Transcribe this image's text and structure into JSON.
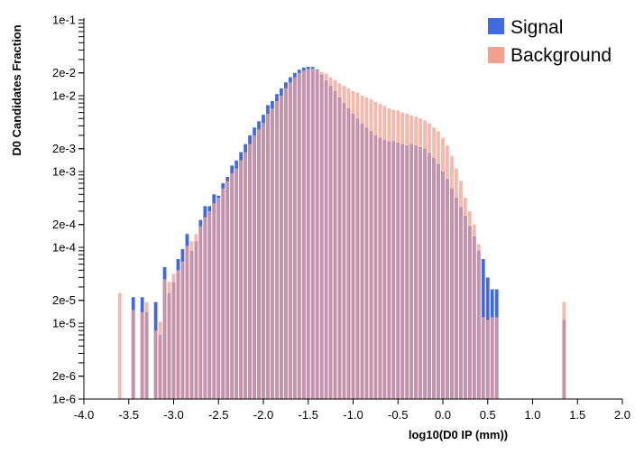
{
  "chart_data": {
    "type": "bar",
    "xlabel": "log10(D0 IP (mm))",
    "ylabel": "D0 Candidates Fraction",
    "y_scale": "log",
    "xlim": [
      -4.0,
      2.0
    ],
    "ylim": [
      1e-06,
      0.1
    ],
    "x_ticks": [
      "-4.0",
      "-3.5",
      "-3.0",
      "-2.5",
      "-2.0",
      "-1.5",
      "-1.0",
      "-0.5",
      "0.0",
      "0.5",
      "1.0",
      "1.5",
      "2.0"
    ],
    "y_ticks": [
      {
        "value": 1e-06,
        "label": "1e-6"
      },
      {
        "value": 2e-06,
        "label": "2e-6"
      },
      {
        "value": 1e-05,
        "label": "1e-5"
      },
      {
        "value": 2e-05,
        "label": "2e-5"
      },
      {
        "value": 0.0001,
        "label": "1e-4"
      },
      {
        "value": 0.0002,
        "label": "2e-4"
      },
      {
        "value": 0.001,
        "label": "1e-3"
      },
      {
        "value": 0.002,
        "label": "2e-3"
      },
      {
        "value": 0.01,
        "label": "1e-2"
      },
      {
        "value": 0.02,
        "label": "2e-2"
      },
      {
        "value": 0.1,
        "label": "1e-1"
      }
    ],
    "bin_width": 0.05,
    "legend_position": "top-right",
    "series": [
      {
        "name": "Signal",
        "color": "#4169e1",
        "points": [
          [
            -3.45,
            2.2e-05
          ],
          [
            -3.35,
            2.2e-05
          ],
          [
            -3.3,
            1.4e-05
          ],
          [
            -3.2,
            1.9e-05
          ],
          [
            -3.15,
            7e-06
          ],
          [
            -3.1,
            5.5e-05
          ],
          [
            -3.05,
            2.5e-05
          ],
          [
            -3.0,
            3.5e-05
          ],
          [
            -2.95,
            7e-05
          ],
          [
            -2.9,
            9.5e-05
          ],
          [
            -2.85,
            0.00015
          ],
          [
            -2.8,
            9e-05
          ],
          [
            -2.75,
            0.00012
          ],
          [
            -2.7,
            0.00023
          ],
          [
            -2.65,
            0.00035
          ],
          [
            -2.6,
            0.00035
          ],
          [
            -2.55,
            0.0005
          ],
          [
            -2.5,
            0.00048
          ],
          [
            -2.45,
            0.0007
          ],
          [
            -2.4,
            0.00085
          ],
          [
            -2.35,
            0.0012
          ],
          [
            -2.3,
            0.0014
          ],
          [
            -2.25,
            0.0018
          ],
          [
            -2.2,
            0.0023
          ],
          [
            -2.15,
            0.003
          ],
          [
            -2.1,
            0.0038
          ],
          [
            -2.05,
            0.0046
          ],
          [
            -2.0,
            0.0056
          ],
          [
            -1.95,
            0.0075
          ],
          [
            -1.9,
            0.0085
          ],
          [
            -1.85,
            0.0105
          ],
          [
            -1.8,
            0.0125
          ],
          [
            -1.75,
            0.015
          ],
          [
            -1.7,
            0.0175
          ],
          [
            -1.65,
            0.02
          ],
          [
            -1.6,
            0.022
          ],
          [
            -1.55,
            0.0235
          ],
          [
            -1.5,
            0.024
          ],
          [
            -1.45,
            0.024
          ],
          [
            -1.4,
            0.022
          ],
          [
            -1.35,
            0.019
          ],
          [
            -1.3,
            0.016
          ],
          [
            -1.25,
            0.0135
          ],
          [
            -1.2,
            0.0115
          ],
          [
            -1.15,
            0.0095
          ],
          [
            -1.1,
            0.008
          ],
          [
            -1.05,
            0.0068
          ],
          [
            -1.0,
            0.0058
          ],
          [
            -0.95,
            0.005
          ],
          [
            -0.9,
            0.0043
          ],
          [
            -0.85,
            0.0038
          ],
          [
            -0.8,
            0.0034
          ],
          [
            -0.75,
            0.003
          ],
          [
            -0.7,
            0.0028
          ],
          [
            -0.65,
            0.0026
          ],
          [
            -0.6,
            0.0025
          ],
          [
            -0.55,
            0.0025
          ],
          [
            -0.5,
            0.0024
          ],
          [
            -0.45,
            0.0023
          ],
          [
            -0.4,
            0.0022
          ],
          [
            -0.35,
            0.0023
          ],
          [
            -0.3,
            0.0022
          ],
          [
            -0.25,
            0.0021
          ],
          [
            -0.2,
            0.002
          ],
          [
            -0.15,
            0.00175
          ],
          [
            -0.1,
            0.0015
          ],
          [
            -0.05,
            0.00125
          ],
          [
            0.0,
            0.001
          ],
          [
            0.05,
            0.0008
          ],
          [
            0.1,
            0.0006
          ],
          [
            0.15,
            0.00045
          ],
          [
            0.2,
            0.00034
          ],
          [
            0.25,
            0.00026
          ],
          [
            0.3,
            0.00019
          ],
          [
            0.35,
            0.00014
          ],
          [
            0.4,
            9e-05
          ],
          [
            0.45,
            7e-05
          ],
          [
            0.5,
            4e-05
          ],
          [
            0.55,
            2.8e-05
          ],
          [
            0.6,
            2.8e-05
          ],
          [
            1.35,
            1.1e-05
          ]
        ]
      },
      {
        "name": "Background",
        "color": "#f4a090",
        "points": [
          [
            -3.6,
            2.5e-05
          ],
          [
            -3.45,
            1.5e-05
          ],
          [
            -3.35,
            1.4e-05
          ],
          [
            -3.3,
            1.9e-05
          ],
          [
            -3.2,
            8e-06
          ],
          [
            -3.15,
            1.05e-05
          ],
          [
            -3.1,
            3.8e-05
          ],
          [
            -3.05,
            3.5e-05
          ],
          [
            -3.0,
            4.5e-05
          ],
          [
            -2.95,
            5e-05
          ],
          [
            -2.9,
            6.5e-05
          ],
          [
            -2.85,
            0.000105
          ],
          [
            -2.8,
            0.00012
          ],
          [
            -2.75,
            0.00015
          ],
          [
            -2.7,
            0.00019
          ],
          [
            -2.65,
            0.00025
          ],
          [
            -2.6,
            0.0003
          ],
          [
            -2.55,
            0.00038
          ],
          [
            -2.5,
            0.00045
          ],
          [
            -2.45,
            0.0006
          ],
          [
            -2.4,
            0.00075
          ],
          [
            -2.35,
            0.00095
          ],
          [
            -2.3,
            0.0011
          ],
          [
            -2.25,
            0.0014
          ],
          [
            -2.2,
            0.0018
          ],
          [
            -2.15,
            0.0023
          ],
          [
            -2.1,
            0.003
          ],
          [
            -2.05,
            0.0036
          ],
          [
            -2.0,
            0.0044
          ],
          [
            -1.95,
            0.0058
          ],
          [
            -1.9,
            0.0068
          ],
          [
            -1.85,
            0.0085
          ],
          [
            -1.8,
            0.01
          ],
          [
            -1.75,
            0.0125
          ],
          [
            -1.7,
            0.015
          ],
          [
            -1.65,
            0.0175
          ],
          [
            -1.6,
            0.02
          ],
          [
            -1.55,
            0.0215
          ],
          [
            -1.5,
            0.0225
          ],
          [
            -1.45,
            0.023
          ],
          [
            -1.4,
            0.0215
          ],
          [
            -1.35,
            0.0205
          ],
          [
            -1.3,
            0.0195
          ],
          [
            -1.25,
            0.0175
          ],
          [
            -1.2,
            0.016
          ],
          [
            -1.15,
            0.0145
          ],
          [
            -1.1,
            0.0135
          ],
          [
            -1.05,
            0.0125
          ],
          [
            -1.0,
            0.0115
          ],
          [
            -0.95,
            0.011
          ],
          [
            -0.9,
            0.01
          ],
          [
            -0.85,
            0.0095
          ],
          [
            -0.8,
            0.009
          ],
          [
            -0.75,
            0.0083
          ],
          [
            -0.7,
            0.0078
          ],
          [
            -0.65,
            0.0073
          ],
          [
            -0.6,
            0.0068
          ],
          [
            -0.55,
            0.0065
          ],
          [
            -0.5,
            0.0064
          ],
          [
            -0.45,
            0.006
          ],
          [
            -0.4,
            0.0058
          ],
          [
            -0.35,
            0.0055
          ],
          [
            -0.3,
            0.0053
          ],
          [
            -0.25,
            0.005
          ],
          [
            -0.2,
            0.0047
          ],
          [
            -0.15,
            0.0043
          ],
          [
            -0.1,
            0.0038
          ],
          [
            -0.05,
            0.0034
          ],
          [
            0.0,
            0.0028
          ],
          [
            0.05,
            0.0022
          ],
          [
            0.1,
            0.0016
          ],
          [
            0.15,
            0.0011
          ],
          [
            0.2,
            0.00075
          ],
          [
            0.25,
            0.00045
          ],
          [
            0.3,
            0.0003
          ],
          [
            0.35,
            0.0002
          ],
          [
            0.4,
            0.00011
          ],
          [
            0.45,
            1.2e-05
          ],
          [
            0.5,
            1.1e-05
          ],
          [
            0.55,
            1.2e-05
          ],
          [
            0.6,
            1.2e-05
          ],
          [
            1.35,
            1.9e-05
          ]
        ]
      }
    ]
  }
}
